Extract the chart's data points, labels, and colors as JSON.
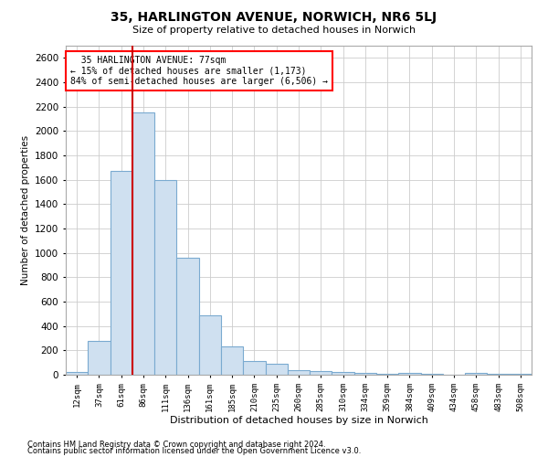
{
  "title1": "35, HARLINGTON AVENUE, NORWICH, NR6 5LJ",
  "title2": "Size of property relative to detached houses in Norwich",
  "xlabel": "Distribution of detached houses by size in Norwich",
  "ylabel": "Number of detached properties",
  "footnote1": "Contains HM Land Registry data © Crown copyright and database right 2024.",
  "footnote2": "Contains public sector information licensed under the Open Government Licence v3.0.",
  "annotation_line1": "  35 HARLINGTON AVENUE: 77sqm",
  "annotation_line2": "← 15% of detached houses are smaller (1,173)",
  "annotation_line3": "84% of semi-detached houses are larger (6,506) →",
  "bar_color": "#cfe0f0",
  "bar_edge_color": "#7aaad0",
  "redline_color": "#cc0000",
  "categories": [
    "12sqm",
    "37sqm",
    "61sqm",
    "86sqm",
    "111sqm",
    "136sqm",
    "161sqm",
    "185sqm",
    "210sqm",
    "235sqm",
    "260sqm",
    "285sqm",
    "310sqm",
    "334sqm",
    "359sqm",
    "384sqm",
    "409sqm",
    "434sqm",
    "458sqm",
    "483sqm",
    "508sqm"
  ],
  "values": [
    20,
    280,
    1670,
    2150,
    1600,
    960,
    490,
    230,
    110,
    90,
    40,
    30,
    22,
    12,
    5,
    15,
    5,
    3,
    15,
    5,
    5
  ],
  "ylim": [
    0,
    2700
  ],
  "yticks": [
    0,
    200,
    400,
    600,
    800,
    1000,
    1200,
    1400,
    1600,
    1800,
    2000,
    2200,
    2400,
    2600
  ],
  "bg_color": "#ffffff",
  "grid_color": "#cccccc"
}
